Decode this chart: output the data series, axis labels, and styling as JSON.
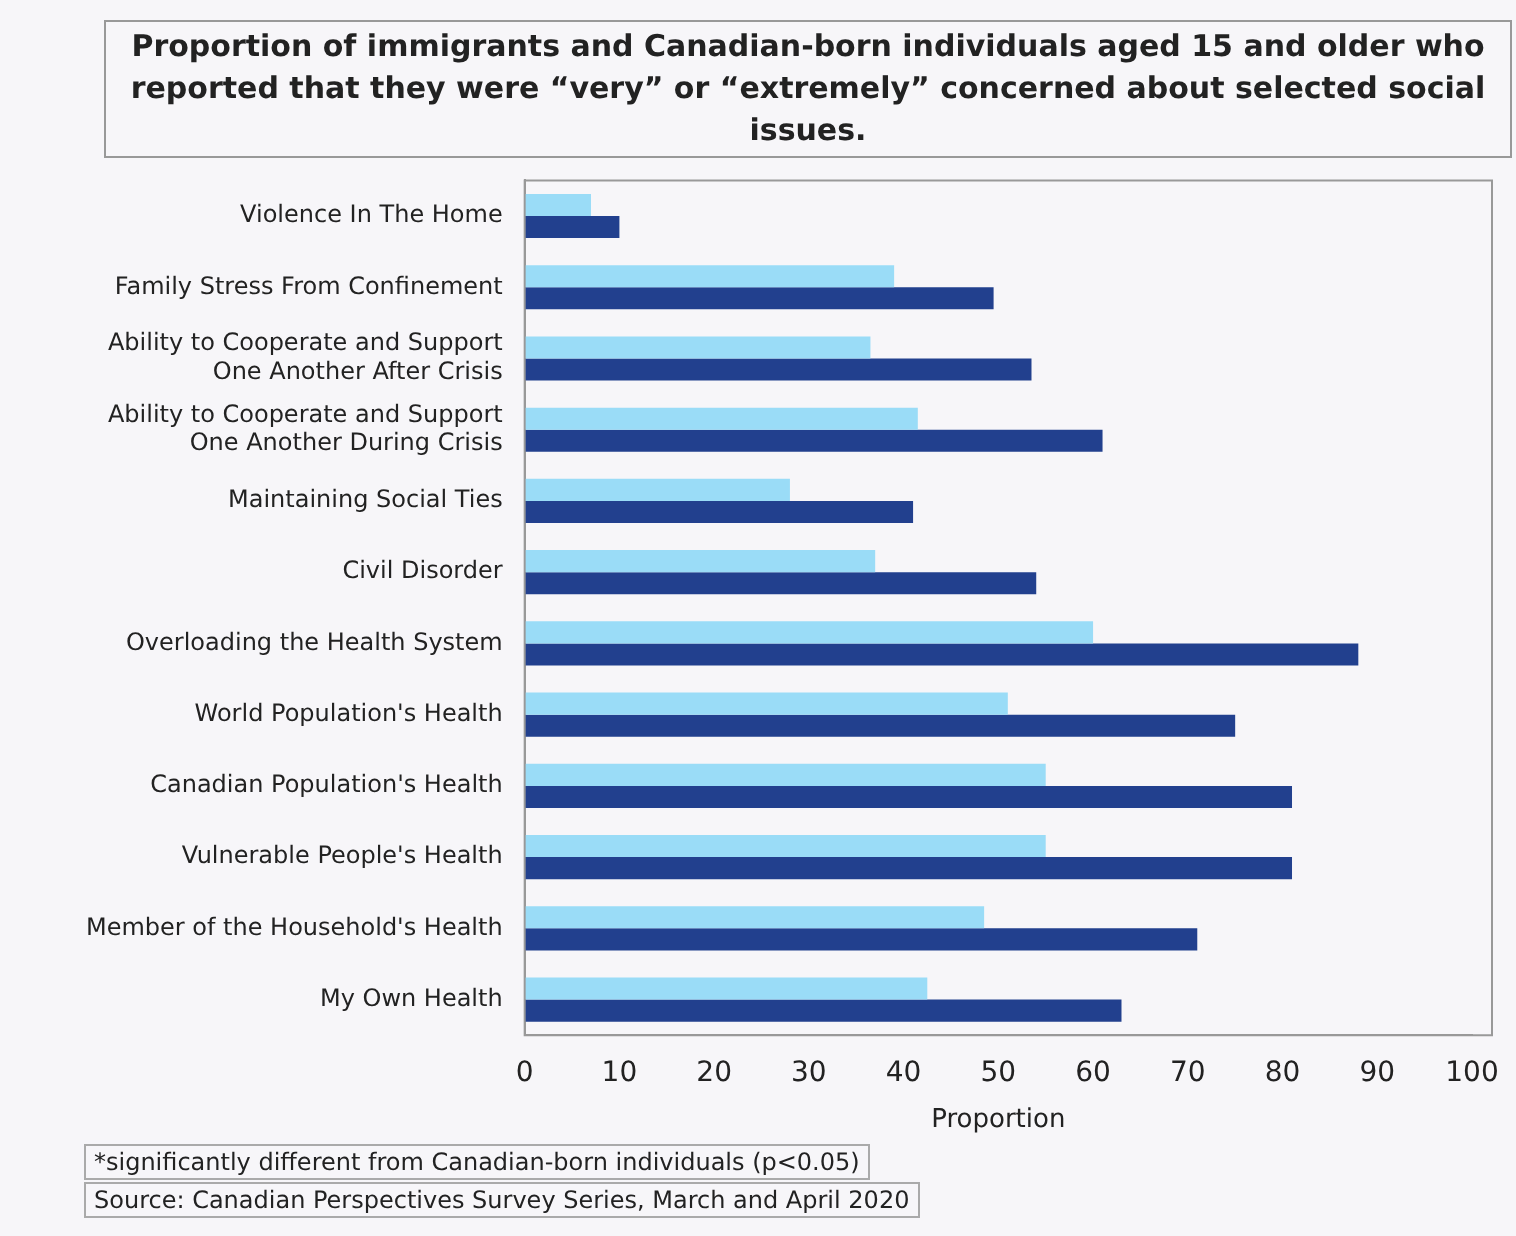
{
  "chart_data": {
    "type": "bar",
    "orientation": "horizontal",
    "title": "Proportion of immigrants and Canadian-born individuals aged 15 and older who reported that they were “very” or “extremely” concerned about selected social issues.",
    "xlabel": "Proportion",
    "categories": [
      "Violence In The Home",
      "Family Stress From Confinement",
      "Ability to Cooperate and Support\nOne Another After Crisis",
      "Ability to Cooperate and Support\nOne Another During Crisis",
      "Maintaining Social Ties",
      "Civil Disorder",
      "Overloading the Health System",
      "World Population's Health",
      "Canadian Population's Health",
      "Vulnerable People's Health",
      "Member of the Household's Health",
      "My Own Health"
    ],
    "series": [
      {
        "color": "#9adcf7",
        "values": [
          7,
          39,
          36.5,
          41.5,
          28,
          37,
          60,
          51,
          55,
          55,
          48.5,
          42.5
        ]
      },
      {
        "color": "#22408e",
        "values": [
          10,
          49.5,
          53.5,
          61,
          41,
          54,
          88,
          75,
          81,
          81,
          71,
          63
        ]
      }
    ],
    "xlim": [
      0,
      100
    ],
    "xticks": [
      0,
      10,
      20,
      30,
      40,
      50,
      60,
      70,
      80,
      90,
      100
    ],
    "grid": false,
    "legend": false,
    "annotations": [
      "*significantly different from Canadian-born individuals (p<0.05)",
      "Source: Canadian Perspectives Survey Series, March and April 2020"
    ]
  }
}
